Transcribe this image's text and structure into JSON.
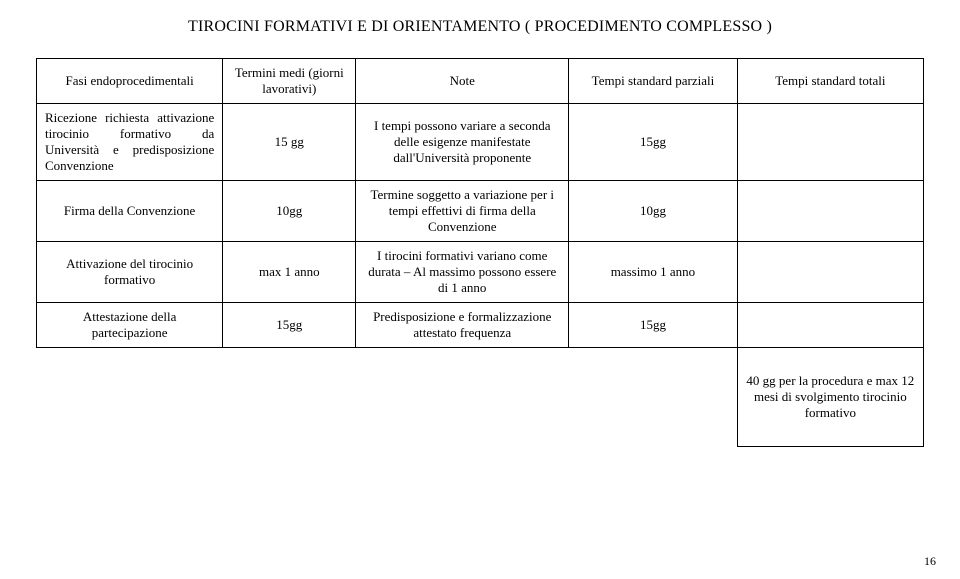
{
  "title": "TIROCINI FORMATIVI E DI ORIENTAMENTO ( PROCEDIMENTO COMPLESSO )",
  "columns": {
    "fasi": "Fasi endoprocedimentali",
    "termini": "Termini medi (giorni lavorativi)",
    "note": "Note",
    "parziali": "Tempi standard parziali",
    "totali": "Tempi standard totali"
  },
  "rows": [
    {
      "fasi": "Ricezione richiesta attivazione tirocinio formativo da Università e predisposizione Convenzione",
      "termini": "15 gg",
      "note": "I tempi possono variare a seconda delle esigenze manifestate dall'Università proponente",
      "parziali": "15gg",
      "totali": ""
    },
    {
      "fasi": "Firma della Convenzione",
      "termini": "10gg",
      "note": "Termine soggetto a variazione per i tempi effettivi di firma della Convenzione",
      "parziali": "10gg",
      "totali": ""
    },
    {
      "fasi": "Attivazione del tirocinio formativo",
      "termini": "max  1 anno",
      "note": "I tirocini formativi variano come durata – Al massimo possono essere di 1 anno",
      "parziali": "massimo 1 anno",
      "totali": ""
    },
    {
      "fasi": "Attestazione della partecipazione",
      "termini": "15gg",
      "note": "Predisposizione e formalizzazione attestato frequenza",
      "parziali": "15gg",
      "totali": ""
    }
  ],
  "footer_total": "40 gg per la procedura e max 12 mesi di svolgimento tirocinio formativo",
  "page_number": "16",
  "style": {
    "font_family": "Times New Roman",
    "title_fontsize": 16,
    "body_fontsize": 13,
    "border_color": "#000000",
    "background_color": "#ffffff",
    "text_color": "#000000",
    "col_widths_pct": [
      21,
      15,
      24,
      19,
      21
    ]
  }
}
